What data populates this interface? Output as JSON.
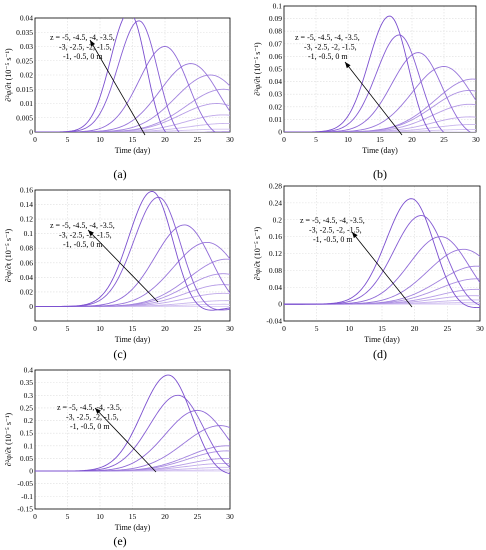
{
  "annotation_lines": [
    "z = -5, -4.5, -4, -3.5,",
    "-3, -2.5, -2, -1.5,",
    "-1, -0.5, 0 m"
  ],
  "colors": {
    "curve_light": "#ddd0f5",
    "curve_dark": "#7b4fcf",
    "grid": "#dddddd",
    "arrow": "#000000"
  },
  "chart_data": [
    {
      "type": "line",
      "panel_label": "(a)",
      "xlabel": "Time (day)",
      "ylabel": "∂²φ/∂t (10⁻⁵ s⁻¹)",
      "xlim": [
        0,
        30
      ],
      "ylim": [
        0,
        0.04
      ],
      "grid": true,
      "xticks": [
        "0",
        "5",
        "10",
        "15",
        "20",
        "25",
        "30"
      ],
      "yticks": [
        "0",
        "0.005",
        "0.01",
        "0.015",
        "0.02",
        "0.025",
        "0.03",
        "0.035",
        "0.04"
      ],
      "series_peaks": [
        {
          "z": "-5",
          "x": 27,
          "y": 0.0
        },
        {
          "z": "-4.5",
          "x": 29,
          "y": 0.001
        },
        {
          "z": "-4",
          "x": 29.5,
          "y": 0.003
        },
        {
          "z": "-3.5",
          "x": 29,
          "y": 0.006
        },
        {
          "z": "-3",
          "x": 28,
          "y": 0.01
        },
        {
          "z": "-2.5",
          "x": 29,
          "y": 0.015
        },
        {
          "z": "-2",
          "x": 27,
          "y": 0.02
        },
        {
          "z": "-1.5",
          "x": 24,
          "y": 0.024
        },
        {
          "z": "-1",
          "x": 20,
          "y": 0.03
        },
        {
          "z": "-0.5",
          "x": 16,
          "y": 0.039
        },
        {
          "z": "0",
          "x": 14.5,
          "y": 0.042
        }
      ]
    },
    {
      "type": "line",
      "panel_label": "(b)",
      "xlabel": "Time (day)",
      "ylabel": "∂²φ/∂t (10⁻⁵ s⁻¹)",
      "xlim": [
        0,
        30
      ],
      "ylim": [
        0,
        0.1
      ],
      "grid": true,
      "xticks": [
        "0",
        "5",
        "10",
        "15",
        "20",
        "25",
        "30"
      ],
      "yticks": [
        "0",
        "0.01",
        "0.02",
        "0.03",
        "0.04",
        "0.05",
        "0.06",
        "0.07",
        "0.08",
        "0.09",
        "0.1"
      ],
      "series_peaks": [
        {
          "z": "-5",
          "x": 28,
          "y": 0.0
        },
        {
          "z": "-4.5",
          "x": 29,
          "y": 0.002
        },
        {
          "z": "-4",
          "x": 29.5,
          "y": 0.006
        },
        {
          "z": "-3.5",
          "x": 29,
          "y": 0.012
        },
        {
          "z": "-3",
          "x": 29,
          "y": 0.022
        },
        {
          "z": "-2.5",
          "x": 29,
          "y": 0.033
        },
        {
          "z": "-2",
          "x": 29.5,
          "y": 0.042
        },
        {
          "z": "-1.5",
          "x": 25,
          "y": 0.052
        },
        {
          "z": "-1",
          "x": 21,
          "y": 0.063
        },
        {
          "z": "-0.5",
          "x": 18,
          "y": 0.077
        },
        {
          "z": "0",
          "x": 16.5,
          "y": 0.092
        }
      ]
    },
    {
      "type": "line",
      "panel_label": "(c)",
      "xlabel": "Time (day)",
      "ylabel": "∂²φ/∂t (10⁻⁵ s⁻¹)",
      "xlim": [
        0,
        30
      ],
      "ylim": [
        -0.02,
        0.16
      ],
      "grid": true,
      "xticks": [
        "0",
        "5",
        "10",
        "15",
        "20",
        "25",
        "30"
      ],
      "yticks": [
        "0",
        "0.02",
        "0.04",
        "0.06",
        "0.08",
        "0.1",
        "0.12",
        "0.14",
        "0.16"
      ],
      "series_peaks": [
        {
          "z": "-5",
          "x": 28,
          "y": 0.0
        },
        {
          "z": "-4.5",
          "x": 29,
          "y": 0.003
        },
        {
          "z": "-4",
          "x": 29.5,
          "y": 0.008
        },
        {
          "z": "-3.5",
          "x": 29,
          "y": 0.018
        },
        {
          "z": "-3",
          "x": 29,
          "y": 0.03
        },
        {
          "z": "-2.5",
          "x": 29,
          "y": 0.045
        },
        {
          "z": "-2",
          "x": 29.5,
          "y": 0.065
        },
        {
          "z": "-1.5",
          "x": 26.5,
          "y": 0.088
        },
        {
          "z": "-1",
          "x": 23,
          "y": 0.112
        },
        {
          "z": "-0.5",
          "x": 19,
          "y": 0.15
        },
        {
          "z": "0",
          "x": 18,
          "y": 0.158
        }
      ]
    },
    {
      "type": "line",
      "panel_label": "(d)",
      "xlabel": "Time (day)",
      "ylabel": "∂²φ/∂t (10⁻⁵ s⁻¹)",
      "xlim": [
        0,
        30
      ],
      "ylim": [
        -0.04,
        0.28
      ],
      "grid": true,
      "xticks": [
        "0",
        "5",
        "10",
        "15",
        "20",
        "25",
        "30"
      ],
      "yticks": [
        "-0.04",
        "0",
        "0.04",
        "0.08",
        "0.12",
        "0.16",
        "0.2",
        "0.24",
        "0.28"
      ],
      "series_peaks": [
        {
          "z": "-5",
          "x": 28,
          "y": 0.0
        },
        {
          "z": "-4.5",
          "x": 29,
          "y": 0.004
        },
        {
          "z": "-4",
          "x": 29.5,
          "y": 0.01
        },
        {
          "z": "-3.5",
          "x": 29,
          "y": 0.02
        },
        {
          "z": "-3",
          "x": 29.5,
          "y": 0.035
        },
        {
          "z": "-2.5",
          "x": 29.5,
          "y": 0.06
        },
        {
          "z": "-2",
          "x": 29.5,
          "y": 0.09
        },
        {
          "z": "-1.5",
          "x": 27.5,
          "y": 0.13
        },
        {
          "z": "-1",
          "x": 24,
          "y": 0.16
        },
        {
          "z": "-0.5",
          "x": 21,
          "y": 0.21
        },
        {
          "z": "0",
          "x": 19.5,
          "y": 0.25
        }
      ]
    },
    {
      "type": "line",
      "panel_label": "(e)",
      "xlabel": "Time (day)",
      "ylabel": "∂²φ/∂t (10⁻⁵ s⁻¹)",
      "xlim": [
        0,
        30
      ],
      "ylim": [
        -0.15,
        0.4
      ],
      "grid": true,
      "xticks": [
        "0",
        "5",
        "10",
        "15",
        "20",
        "25",
        "30"
      ],
      "yticks": [
        "-0.15",
        "-0.1",
        "-0.05",
        "0",
        "0.05",
        "0.1",
        "0.15",
        "0.2",
        "0.25",
        "0.3",
        "0.35",
        "0.4"
      ],
      "series_peaks": [
        {
          "z": "-5",
          "x": 28,
          "y": 0.0
        },
        {
          "z": "-4.5",
          "x": 29,
          "y": 0.005
        },
        {
          "z": "-4",
          "x": 29.5,
          "y": 0.015
        },
        {
          "z": "-3.5",
          "x": 29,
          "y": 0.03
        },
        {
          "z": "-3",
          "x": 29.5,
          "y": 0.05
        },
        {
          "z": "-2.5",
          "x": 29.5,
          "y": 0.08
        },
        {
          "z": "-2",
          "x": 29.5,
          "y": 0.1
        },
        {
          "z": "-1.5",
          "x": 28.5,
          "y": 0.18
        },
        {
          "z": "-1",
          "x": 25,
          "y": 0.24
        },
        {
          "z": "-0.5",
          "x": 22,
          "y": 0.3
        },
        {
          "z": "0",
          "x": 20.5,
          "y": 0.38
        }
      ]
    }
  ]
}
